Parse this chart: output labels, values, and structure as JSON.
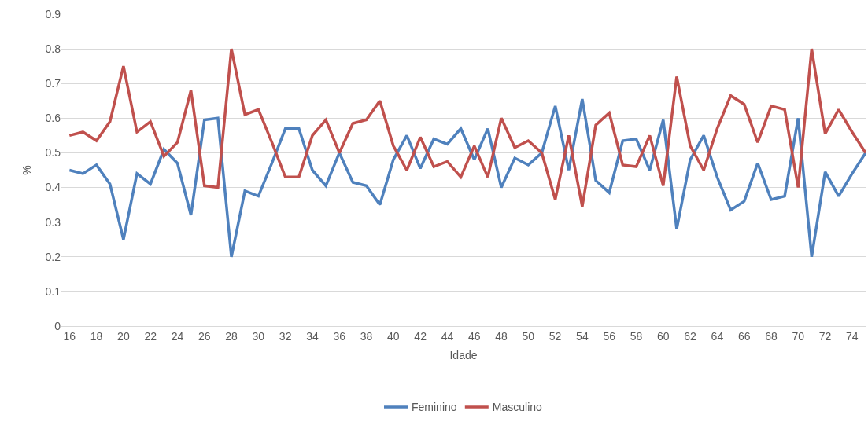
{
  "chart_data": {
    "type": "line",
    "xlabel": "Idade",
    "ylabel": "%",
    "x": [
      16,
      17,
      18,
      19,
      20,
      21,
      22,
      23,
      24,
      25,
      26,
      27,
      28,
      29,
      30,
      31,
      32,
      33,
      34,
      35,
      36,
      37,
      38,
      39,
      40,
      41,
      42,
      43,
      44,
      45,
      46,
      47,
      48,
      49,
      50,
      51,
      52,
      53,
      54,
      55,
      56,
      57,
      58,
      59,
      60,
      61,
      62,
      63,
      64,
      65,
      66,
      67,
      68,
      69,
      70,
      71,
      72,
      73,
      74,
      75
    ],
    "series": [
      {
        "name": "Feminino",
        "color": "#4f81bd",
        "values": [
          0.45,
          0.44,
          0.465,
          0.41,
          0.25,
          0.44,
          0.41,
          0.51,
          0.47,
          0.32,
          0.595,
          0.6,
          0.2,
          0.39,
          0.375,
          0.47,
          0.57,
          0.57,
          0.45,
          0.405,
          0.5,
          0.415,
          0.405,
          0.35,
          0.48,
          0.55,
          0.455,
          0.54,
          0.525,
          0.57,
          0.48,
          0.57,
          0.4,
          0.485,
          0.465,
          0.5,
          0.635,
          0.45,
          0.655,
          0.42,
          0.385,
          0.535,
          0.54,
          0.45,
          0.595,
          0.28,
          0.48,
          0.55,
          0.43,
          0.335,
          0.36,
          0.47,
          0.365,
          0.375,
          0.6,
          0.2,
          0.445,
          0.375,
          0.44,
          0.5
        ]
      },
      {
        "name": "Masculino",
        "color": "#c0504d",
        "values": [
          0.55,
          0.56,
          0.535,
          0.59,
          0.75,
          0.56,
          0.59,
          0.49,
          0.53,
          0.68,
          0.405,
          0.4,
          0.8,
          0.61,
          0.625,
          0.53,
          0.43,
          0.43,
          0.55,
          0.595,
          0.5,
          0.585,
          0.595,
          0.65,
          0.52,
          0.45,
          0.545,
          0.46,
          0.475,
          0.43,
          0.52,
          0.43,
          0.6,
          0.515,
          0.535,
          0.5,
          0.365,
          0.55,
          0.345,
          0.58,
          0.615,
          0.465,
          0.46,
          0.55,
          0.405,
          0.72,
          0.52,
          0.45,
          0.57,
          0.665,
          0.64,
          0.53,
          0.635,
          0.625,
          0.4,
          0.8,
          0.555,
          0.625,
          0.56,
          0.5
        ]
      }
    ],
    "xlim": [
      15.4,
      75
    ],
    "xticks": [
      16,
      18,
      20,
      22,
      24,
      26,
      28,
      30,
      32,
      34,
      36,
      38,
      40,
      42,
      44,
      46,
      48,
      50,
      52,
      54,
      56,
      58,
      60,
      62,
      64,
      66,
      68,
      70,
      72,
      74
    ],
    "ylim": [
      0,
      0.9
    ],
    "yticks": [
      0,
      0.1,
      0.2,
      0.3,
      0.4,
      0.5,
      0.6,
      0.7,
      0.8,
      0.9
    ],
    "grid": "y",
    "legend": "bottom",
    "marker": "none",
    "line_style": "solid"
  }
}
